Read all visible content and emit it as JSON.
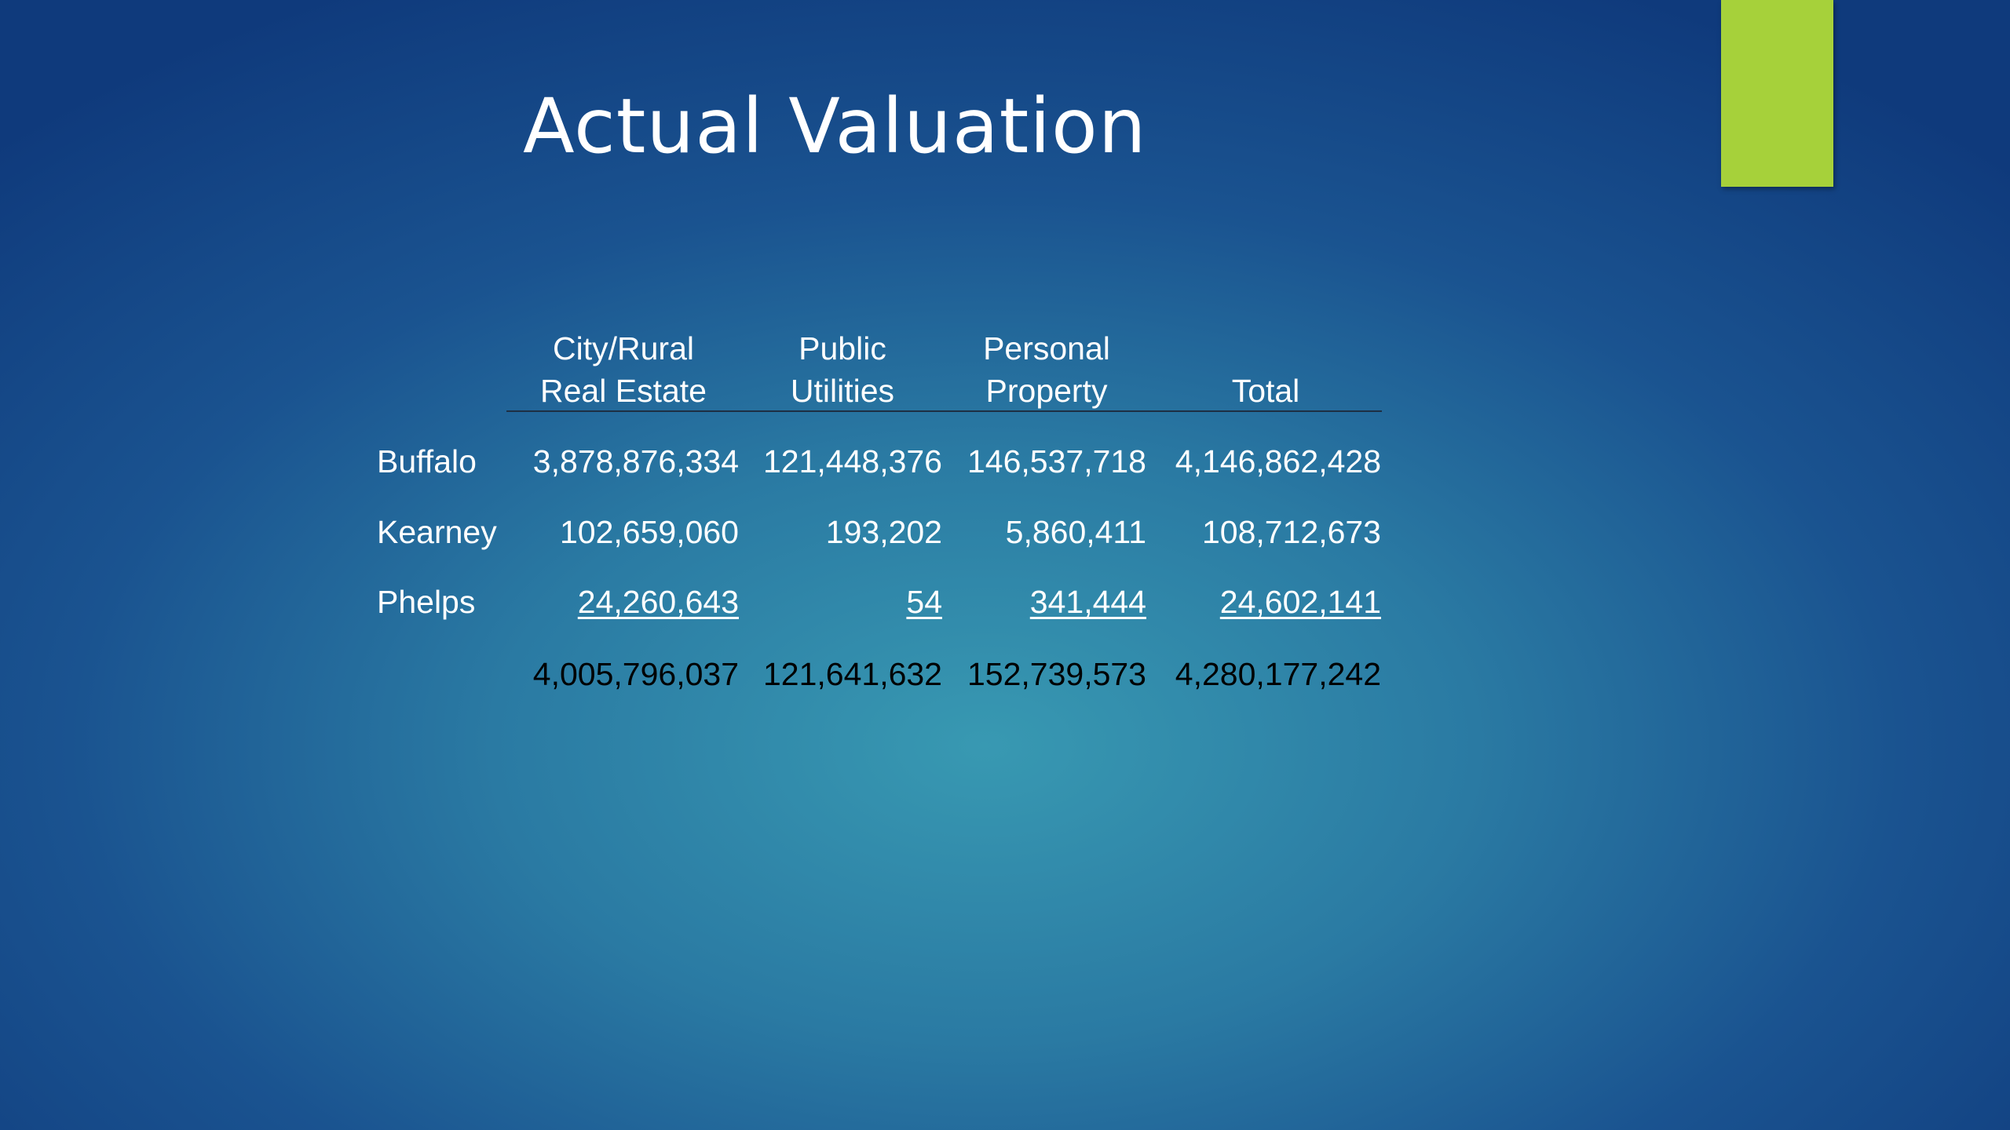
{
  "title": "Actual Valuation",
  "table": {
    "headers": [
      [
        "City/Rural",
        "Real Estate"
      ],
      [
        "Public",
        "Utilities"
      ],
      [
        "Personal",
        "Property"
      ],
      [
        "Total"
      ]
    ],
    "rows": [
      [
        "Buffalo",
        "3,878,876,334",
        "121,448,376",
        "146,537,718",
        "4,146,862,428"
      ],
      [
        "Kearney",
        "102,659,060",
        "193,202",
        "5,860,411",
        "108,712,673"
      ],
      [
        "Phelps",
        "24,260,643",
        "54",
        "341,444",
        "24,602,141"
      ]
    ],
    "totals": [
      "4,005,796,037",
      "121,641,632",
      "152,739,573",
      "4,280,177,242"
    ]
  }
}
